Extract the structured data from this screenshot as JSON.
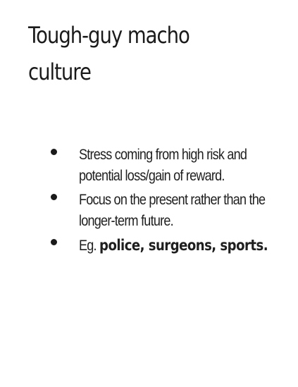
{
  "slide": {
    "title_line1": "Tough-guy macho",
    "title_line2": "culture",
    "bullets": [
      {
        "text": "Stress coming  from high risk and potential loss/gain of reward."
      },
      {
        "text": "Focus on the present  rather than the longer-term future."
      },
      {
        "prefix": "Eg. ",
        "bold_text": "police,  surgeons, sports."
      }
    ]
  }
}
